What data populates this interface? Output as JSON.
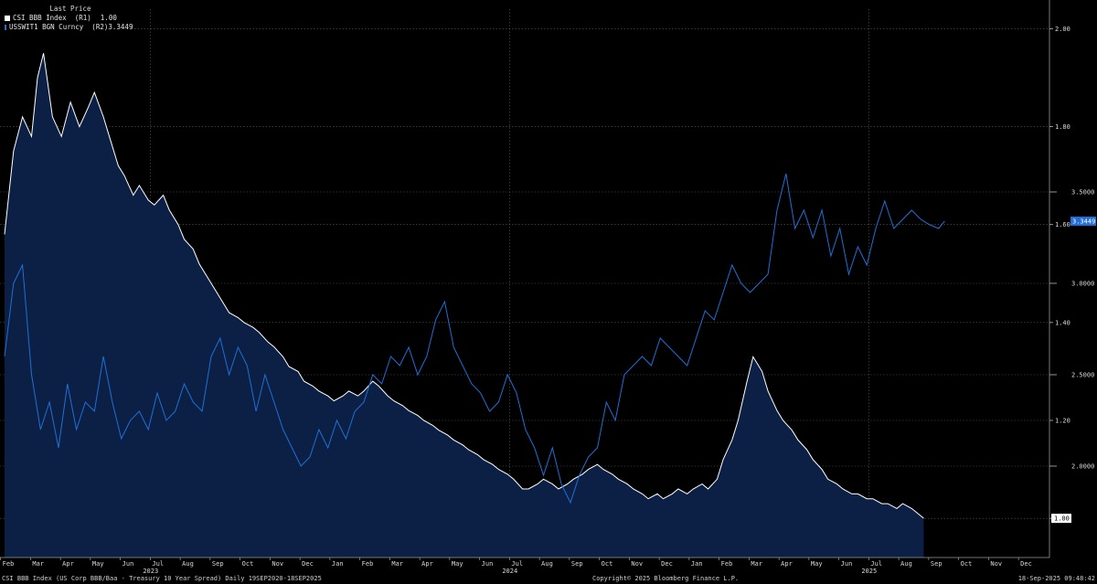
{
  "legend": {
    "header": "Last Price",
    "items": [
      {
        "label": "CSI BBB Index  (R1)",
        "value": "1.00",
        "color": "#ffffff"
      },
      {
        "label": "USSWIT1 BGN Curncy  (R2)",
        "value": "3.3449",
        "color": "#1f6fd6"
      }
    ]
  },
  "footer": {
    "description": "CSI BBB Index (US Corp BBB/Baa - Treasury 10 Year Spread)  Daily 19SEP2020-18SEP2025",
    "copyright": "Copyright© 2025 Bloomberg Finance L.P.",
    "timestamp": "18-Sep-2025 09:48:42"
  },
  "chart_data": {
    "type": "line",
    "x_axis": {
      "months": [
        "Feb",
        "Mar",
        "Apr",
        "May",
        "Jun",
        "Jul",
        "Aug",
        "Sep",
        "Oct",
        "Nov",
        "Dec",
        "Jan",
        "Feb",
        "Mar",
        "Apr",
        "May",
        "Jun",
        "Jul",
        "Aug",
        "Sep",
        "Oct",
        "Nov",
        "Dec",
        "Jan",
        "Feb",
        "Mar",
        "Apr",
        "May",
        "Jun",
        "Jul",
        "Aug",
        "Sep",
        "Oct",
        "Nov",
        "Dec"
      ],
      "years": [
        {
          "label": "2023",
          "month_index": 5
        },
        {
          "label": "2024",
          "month_index": 17
        },
        {
          "label": "2025",
          "month_index": 29
        }
      ]
    },
    "axes": {
      "r1": {
        "label": "CSI BBB Index (R1)",
        "range": [
          0.92,
          2.04
        ],
        "ticks": [
          "2.00",
          "1.80",
          "1.60",
          "1.40",
          "1.20",
          "1.00"
        ]
      },
      "r2": {
        "label": "USSWIT1 BGN Curncy (R2)",
        "range": [
          1.5,
          4.5
        ],
        "ticks": [
          "3.5000",
          "3.0000",
          "2.5000",
          "2.0000"
        ]
      }
    },
    "grid": true,
    "series": [
      {
        "name": "CSI BBB Index",
        "axis": "R1",
        "style": "area",
        "color": "#ffffff",
        "fill": "#0b2044",
        "last_value": "1.00",
        "points": [
          [
            0.0,
            1.58
          ],
          [
            0.3,
            1.75
          ],
          [
            0.6,
            1.82
          ],
          [
            0.9,
            1.78
          ],
          [
            1.1,
            1.9
          ],
          [
            1.3,
            1.95
          ],
          [
            1.6,
            1.82
          ],
          [
            1.9,
            1.78
          ],
          [
            2.2,
            1.85
          ],
          [
            2.5,
            1.8
          ],
          [
            2.8,
            1.84
          ],
          [
            3.0,
            1.87
          ],
          [
            3.3,
            1.82
          ],
          [
            3.5,
            1.78
          ],
          [
            3.8,
            1.72
          ],
          [
            4.0,
            1.7
          ],
          [
            4.3,
            1.66
          ],
          [
            4.5,
            1.68
          ],
          [
            4.8,
            1.65
          ],
          [
            5.0,
            1.64
          ],
          [
            5.3,
            1.66
          ],
          [
            5.5,
            1.63
          ],
          [
            5.8,
            1.6
          ],
          [
            6.0,
            1.57
          ],
          [
            6.3,
            1.55
          ],
          [
            6.5,
            1.52
          ],
          [
            6.8,
            1.49
          ],
          [
            7.0,
            1.47
          ],
          [
            7.3,
            1.44
          ],
          [
            7.5,
            1.42
          ],
          [
            7.8,
            1.41
          ],
          [
            8.0,
            1.4
          ],
          [
            8.3,
            1.39
          ],
          [
            8.5,
            1.38
          ],
          [
            8.8,
            1.36
          ],
          [
            9.0,
            1.35
          ],
          [
            9.3,
            1.33
          ],
          [
            9.5,
            1.31
          ],
          [
            9.8,
            1.3
          ],
          [
            10.0,
            1.28
          ],
          [
            10.3,
            1.27
          ],
          [
            10.5,
            1.26
          ],
          [
            10.8,
            1.25
          ],
          [
            11.0,
            1.24
          ],
          [
            11.3,
            1.25
          ],
          [
            11.5,
            1.26
          ],
          [
            11.8,
            1.25
          ],
          [
            12.0,
            1.26
          ],
          [
            12.3,
            1.28
          ],
          [
            12.5,
            1.27
          ],
          [
            12.8,
            1.25
          ],
          [
            13.0,
            1.24
          ],
          [
            13.3,
            1.23
          ],
          [
            13.5,
            1.22
          ],
          [
            13.8,
            1.21
          ],
          [
            14.0,
            1.2
          ],
          [
            14.3,
            1.19
          ],
          [
            14.5,
            1.18
          ],
          [
            14.8,
            1.17
          ],
          [
            15.0,
            1.16
          ],
          [
            15.3,
            1.15
          ],
          [
            15.5,
            1.14
          ],
          [
            15.8,
            1.13
          ],
          [
            16.0,
            1.12
          ],
          [
            16.3,
            1.11
          ],
          [
            16.5,
            1.1
          ],
          [
            16.8,
            1.09
          ],
          [
            17.0,
            1.08
          ],
          [
            17.3,
            1.06
          ],
          [
            17.5,
            1.06
          ],
          [
            17.8,
            1.07
          ],
          [
            18.0,
            1.08
          ],
          [
            18.3,
            1.07
          ],
          [
            18.5,
            1.06
          ],
          [
            18.8,
            1.07
          ],
          [
            19.0,
            1.08
          ],
          [
            19.3,
            1.09
          ],
          [
            19.5,
            1.1
          ],
          [
            19.8,
            1.11
          ],
          [
            20.0,
            1.1
          ],
          [
            20.3,
            1.09
          ],
          [
            20.5,
            1.08
          ],
          [
            20.8,
            1.07
          ],
          [
            21.0,
            1.06
          ],
          [
            21.3,
            1.05
          ],
          [
            21.5,
            1.04
          ],
          [
            21.8,
            1.05
          ],
          [
            22.0,
            1.04
          ],
          [
            22.3,
            1.05
          ],
          [
            22.5,
            1.06
          ],
          [
            22.8,
            1.05
          ],
          [
            23.0,
            1.06
          ],
          [
            23.3,
            1.07
          ],
          [
            23.5,
            1.06
          ],
          [
            23.8,
            1.08
          ],
          [
            24.0,
            1.12
          ],
          [
            24.3,
            1.16
          ],
          [
            24.5,
            1.2
          ],
          [
            24.8,
            1.28
          ],
          [
            25.0,
            1.33
          ],
          [
            25.3,
            1.3
          ],
          [
            25.5,
            1.26
          ],
          [
            25.8,
            1.22
          ],
          [
            26.0,
            1.2
          ],
          [
            26.3,
            1.18
          ],
          [
            26.5,
            1.16
          ],
          [
            26.8,
            1.14
          ],
          [
            27.0,
            1.12
          ],
          [
            27.3,
            1.1
          ],
          [
            27.5,
            1.08
          ],
          [
            27.8,
            1.07
          ],
          [
            28.0,
            1.06
          ],
          [
            28.3,
            1.05
          ],
          [
            28.5,
            1.05
          ],
          [
            28.8,
            1.04
          ],
          [
            29.0,
            1.04
          ],
          [
            29.3,
            1.03
          ],
          [
            29.5,
            1.03
          ],
          [
            29.8,
            1.02
          ],
          [
            30.0,
            1.03
          ],
          [
            30.3,
            1.02
          ],
          [
            30.5,
            1.01
          ],
          [
            30.7,
            1.0
          ]
        ]
      },
      {
        "name": "USSWIT1 BGN Curncy",
        "axis": "R2",
        "style": "line",
        "color": "#1f6fd6",
        "last_value": "3.3449",
        "points": [
          [
            0.0,
            2.6
          ],
          [
            0.3,
            3.0
          ],
          [
            0.6,
            3.1
          ],
          [
            0.9,
            2.5
          ],
          [
            1.2,
            2.2
          ],
          [
            1.5,
            2.35
          ],
          [
            1.8,
            2.1
          ],
          [
            2.1,
            2.45
          ],
          [
            2.4,
            2.2
          ],
          [
            2.7,
            2.35
          ],
          [
            3.0,
            2.3
          ],
          [
            3.3,
            2.6
          ],
          [
            3.6,
            2.35
          ],
          [
            3.9,
            2.15
          ],
          [
            4.2,
            2.25
          ],
          [
            4.5,
            2.3
          ],
          [
            4.8,
            2.2
          ],
          [
            5.1,
            2.4
          ],
          [
            5.4,
            2.25
          ],
          [
            5.7,
            2.3
          ],
          [
            6.0,
            2.45
          ],
          [
            6.3,
            2.35
          ],
          [
            6.6,
            2.3
          ],
          [
            6.9,
            2.6
          ],
          [
            7.2,
            2.7
          ],
          [
            7.5,
            2.5
          ],
          [
            7.8,
            2.65
          ],
          [
            8.1,
            2.55
          ],
          [
            8.4,
            2.3
          ],
          [
            8.7,
            2.5
          ],
          [
            9.0,
            2.35
          ],
          [
            9.3,
            2.2
          ],
          [
            9.6,
            2.1
          ],
          [
            9.9,
            2.0
          ],
          [
            10.2,
            2.05
          ],
          [
            10.5,
            2.2
          ],
          [
            10.8,
            2.1
          ],
          [
            11.1,
            2.25
          ],
          [
            11.4,
            2.15
          ],
          [
            11.7,
            2.3
          ],
          [
            12.0,
            2.35
          ],
          [
            12.3,
            2.5
          ],
          [
            12.6,
            2.45
          ],
          [
            12.9,
            2.6
          ],
          [
            13.2,
            2.55
          ],
          [
            13.5,
            2.65
          ],
          [
            13.8,
            2.5
          ],
          [
            14.1,
            2.6
          ],
          [
            14.4,
            2.8
          ],
          [
            14.7,
            2.9
          ],
          [
            15.0,
            2.65
          ],
          [
            15.3,
            2.55
          ],
          [
            15.6,
            2.45
          ],
          [
            15.9,
            2.4
          ],
          [
            16.2,
            2.3
          ],
          [
            16.5,
            2.35
          ],
          [
            16.8,
            2.5
          ],
          [
            17.1,
            2.4
          ],
          [
            17.4,
            2.2
          ],
          [
            17.7,
            2.1
          ],
          [
            18.0,
            1.95
          ],
          [
            18.3,
            2.1
          ],
          [
            18.6,
            1.9
          ],
          [
            18.9,
            1.8
          ],
          [
            19.2,
            1.95
          ],
          [
            19.5,
            2.05
          ],
          [
            19.8,
            2.1
          ],
          [
            20.1,
            2.35
          ],
          [
            20.4,
            2.25
          ],
          [
            20.7,
            2.5
          ],
          [
            21.0,
            2.55
          ],
          [
            21.3,
            2.6
          ],
          [
            21.6,
            2.55
          ],
          [
            21.9,
            2.7
          ],
          [
            22.2,
            2.65
          ],
          [
            22.5,
            2.6
          ],
          [
            22.8,
            2.55
          ],
          [
            23.1,
            2.7
          ],
          [
            23.4,
            2.85
          ],
          [
            23.7,
            2.8
          ],
          [
            24.0,
            2.95
          ],
          [
            24.3,
            3.1
          ],
          [
            24.6,
            3.0
          ],
          [
            24.9,
            2.95
          ],
          [
            25.2,
            3.0
          ],
          [
            25.5,
            3.05
          ],
          [
            25.8,
            3.4
          ],
          [
            26.1,
            3.6
          ],
          [
            26.4,
            3.3
          ],
          [
            26.7,
            3.4
          ],
          [
            27.0,
            3.25
          ],
          [
            27.3,
            3.4
          ],
          [
            27.6,
            3.15
          ],
          [
            27.9,
            3.3
          ],
          [
            28.2,
            3.05
          ],
          [
            28.5,
            3.2
          ],
          [
            28.8,
            3.1
          ],
          [
            29.1,
            3.3
          ],
          [
            29.4,
            3.45
          ],
          [
            29.7,
            3.3
          ],
          [
            30.0,
            3.35
          ],
          [
            30.3,
            3.4
          ],
          [
            30.6,
            3.35
          ],
          [
            30.9,
            3.32
          ],
          [
            31.2,
            3.3
          ],
          [
            31.4,
            3.34
          ]
        ]
      }
    ]
  }
}
